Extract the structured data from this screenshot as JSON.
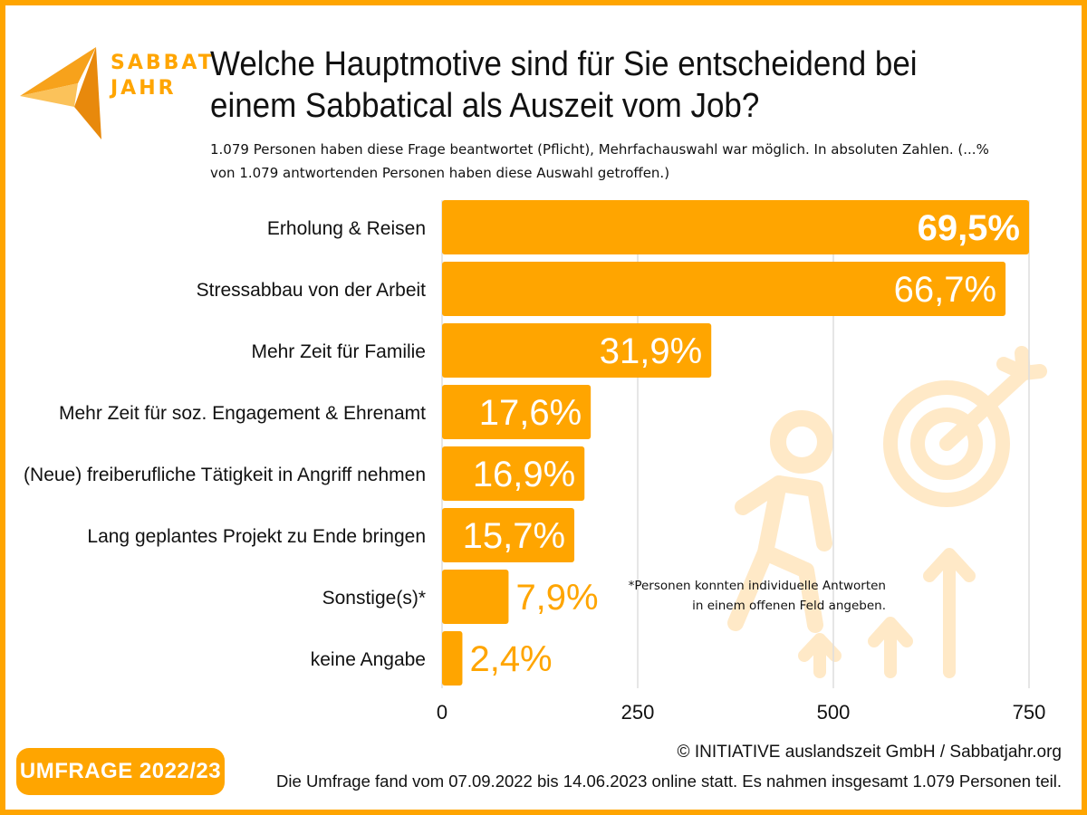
{
  "brand": {
    "logo_line1": "SABBAT",
    "logo_line2": "JAHR",
    "accent_color": "#FFA500",
    "light_accent_color": "#FFE9C7"
  },
  "header": {
    "title": "Welche Hauptmotive sind für Sie entscheidend bei einem Sabbatical als Auszeit vom Job?",
    "subtitle": "1.079 Personen haben diese Frage beantwortet (Pflicht), Mehrfachauswahl war möglich. In absoluten Zahlen. (...% von 1.079 antwortenden Personen haben diese Auswahl getroffen.)"
  },
  "chart_data": {
    "type": "bar",
    "orientation": "horizontal",
    "title": "Welche Hauptmotive sind für Sie entscheidend bei einem Sabbatical als Auszeit vom Job?",
    "xlabel": "",
    "ylabel": "",
    "xlim": [
      0,
      750
    ],
    "xticks": [
      0,
      250,
      500,
      750
    ],
    "grid": true,
    "total_respondents": 1079,
    "categories": [
      "Erholung & Reisen",
      "Stressabbau von der Arbeit",
      "Mehr Zeit für Familie",
      "Mehr Zeit für soz. Engagement & Ehrenamt",
      "(Neue) freiberufliche Tätigkeit in Angriff nehmen",
      "Lang geplantes Projekt zu Ende bringen",
      "Sonstige(s)*",
      "keine Angabe"
    ],
    "values": [
      750,
      720,
      344,
      190,
      182,
      169,
      85,
      26
    ],
    "labels": [
      "69,5%",
      "66,7%",
      "31,9%",
      "17,6%",
      "16,9%",
      "15,7%",
      "7,9%",
      "2,4%"
    ],
    "bar_color": "#FFA500"
  },
  "note": {
    "line1": "*Personen konnten individuelle Antworten",
    "line2": "in einem offenen Feld angeben."
  },
  "footer": {
    "badge": "UMFRAGE 2022/23",
    "copyright": "© INITIATIVE auslandszeit GmbH / Sabbatjahr.org",
    "survey_info": "Die Umfrage fand vom 07.09.2022 bis 14.06.2023 online statt. Es nahmen insgesamt 1.079 Personen teil."
  }
}
